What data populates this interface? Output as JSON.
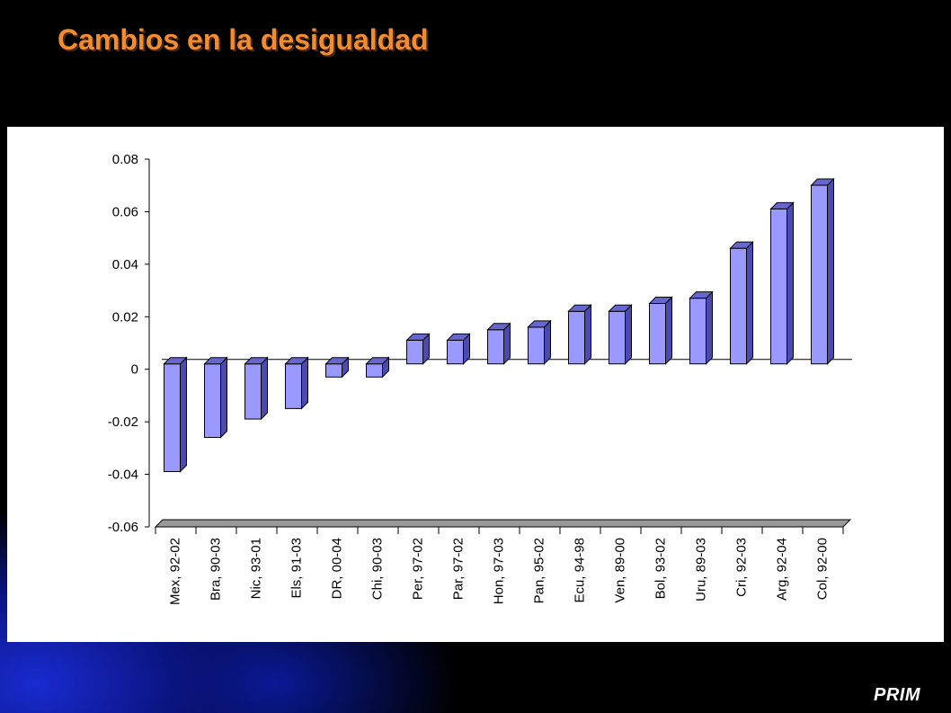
{
  "slide": {
    "title": "Cambios en la desigualdad",
    "brand": "PRIM"
  },
  "colors": {
    "bar_front": "#9999ff",
    "bar_side": "#4a4ab0",
    "bar_top": "#6666cc",
    "floor": "#999999",
    "title": "#f28c30"
  },
  "chart_data": {
    "type": "bar",
    "categories": [
      "Mex, 92-02",
      "Bra, 90-03",
      "Nic, 93-01",
      "Els, 91-03",
      "DR, 00-04",
      "Chi, 90-03",
      "Per, 97-02",
      "Par, 97-02",
      "Hon, 97-03",
      "Pan, 95-02",
      "Ecu, 94-98",
      "Ven, 89-00",
      "Bol, 93-02",
      "Uru, 89-03",
      "Cri, 92-03",
      "Arg, 92-04",
      "Col, 92-00"
    ],
    "values": [
      -0.041,
      -0.028,
      -0.021,
      -0.017,
      -0.005,
      -0.005,
      0.009,
      0.009,
      0.013,
      0.014,
      0.02,
      0.02,
      0.023,
      0.025,
      0.044,
      0.059,
      0.068
    ],
    "ylim": [
      -0.06,
      0.08
    ],
    "yticks": [
      "0.08",
      "0.06",
      "0.04",
      "0.02",
      "0",
      "-0.02",
      "-0.04",
      "-0.06"
    ],
    "ytick_values": [
      0.08,
      0.06,
      0.04,
      0.02,
      0,
      -0.02,
      -0.04,
      -0.06
    ],
    "grid": false,
    "legend": "none"
  }
}
